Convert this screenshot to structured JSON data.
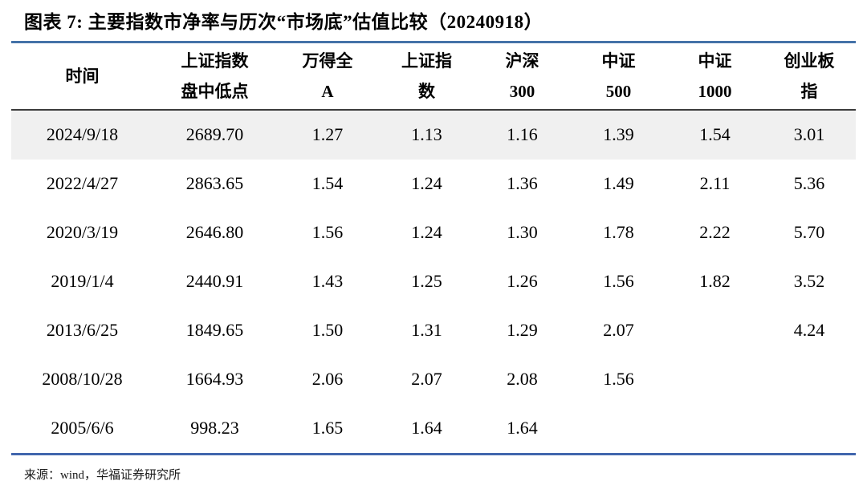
{
  "title": "图表 7:  主要指数市净率与历次“市场底”估值比较（20240918）",
  "colors": {
    "accent_line": "#4472a8",
    "accent_line_bottom": "#4166ad",
    "header_rule": "#3c3c3c",
    "row_highlight": "#f0f0f0"
  },
  "table": {
    "columns": [
      {
        "line1": "时间",
        "line2": ""
      },
      {
        "line1": "上证指数",
        "line2": "盘中低点"
      },
      {
        "line1": "万得全",
        "line2": "A"
      },
      {
        "line1": "上证指",
        "line2": "数"
      },
      {
        "line1": "沪深",
        "line2": "300"
      },
      {
        "line1": "中证",
        "line2": "500"
      },
      {
        "line1": "中证",
        "line2": "1000"
      },
      {
        "line1": "创业板",
        "line2": "指"
      }
    ],
    "rows": [
      {
        "cells": [
          "2024/9/18",
          "2689.70",
          "1.27",
          "1.13",
          "1.16",
          "1.39",
          "1.54",
          "3.01"
        ]
      },
      {
        "cells": [
          "2022/4/27",
          "2863.65",
          "1.54",
          "1.24",
          "1.36",
          "1.49",
          "2.11",
          "5.36"
        ]
      },
      {
        "cells": [
          "2020/3/19",
          "2646.80",
          "1.56",
          "1.24",
          "1.30",
          "1.78",
          "2.22",
          "5.70"
        ]
      },
      {
        "cells": [
          "2019/1/4",
          "2440.91",
          "1.43",
          "1.25",
          "1.26",
          "1.56",
          "1.82",
          "3.52"
        ]
      },
      {
        "cells": [
          "2013/6/25",
          "1849.65",
          "1.50",
          "1.31",
          "1.29",
          "2.07",
          "",
          "4.24"
        ]
      },
      {
        "cells": [
          "2008/10/28",
          "1664.93",
          "2.06",
          "2.07",
          "2.08",
          "1.56",
          "",
          ""
        ]
      },
      {
        "cells": [
          "2005/6/6",
          "998.23",
          "1.65",
          "1.64",
          "1.64",
          "",
          "",
          ""
        ]
      }
    ]
  },
  "footer": {
    "source": "来源：wind，华福证券研究所"
  }
}
